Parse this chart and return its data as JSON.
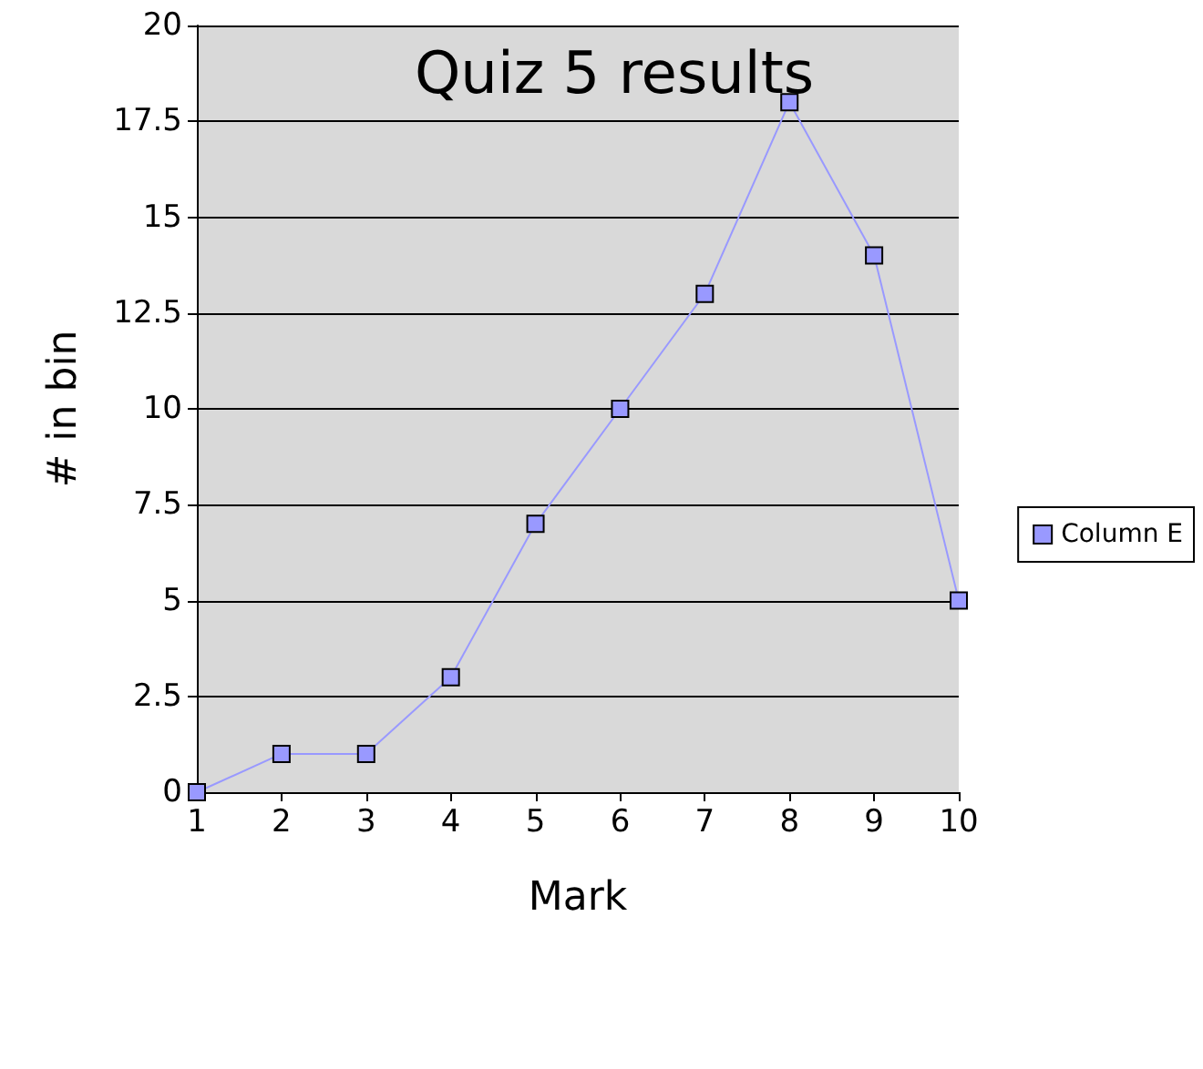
{
  "chart_data": {
    "type": "line",
    "title": "Quiz 5 results",
    "xlabel": "Mark",
    "ylabel": "# in bin",
    "x": [
      1,
      2,
      3,
      4,
      5,
      6,
      7,
      8,
      9,
      10
    ],
    "series": [
      {
        "name": "Column E",
        "color": "#9999ff",
        "values": [
          0,
          1,
          1,
          3,
          7,
          10,
          13,
          18,
          14,
          5
        ]
      }
    ],
    "xlim": [
      1,
      10
    ],
    "xticks": [
      1,
      2,
      3,
      4,
      5,
      6,
      7,
      8,
      9,
      10
    ],
    "ylim": [
      0,
      20
    ],
    "yticks": [
      0,
      2.5,
      5,
      7.5,
      10,
      12.5,
      15,
      17.5,
      20
    ],
    "grid": "y",
    "legend": "right",
    "marker": "square",
    "line_style": "solid"
  }
}
